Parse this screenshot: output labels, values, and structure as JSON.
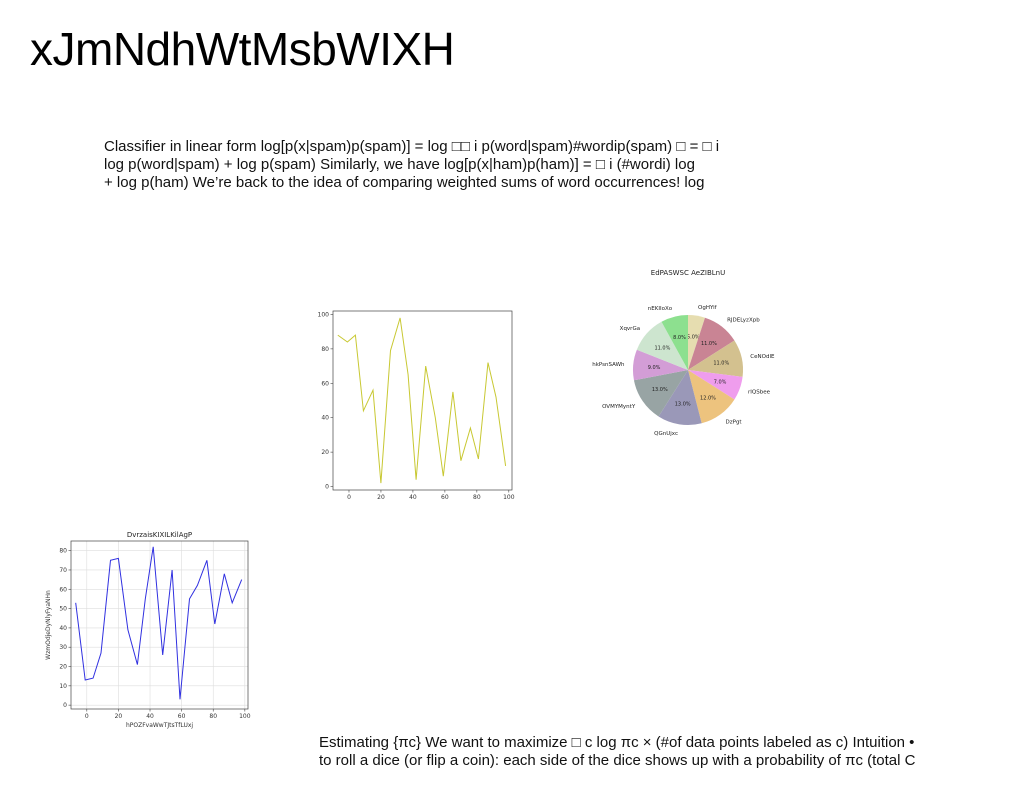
{
  "slide": {
    "title": "xJmNdhWtMsbWIXH",
    "paragraph1": [
      "Classifier in linear form log[p(x|spam)p(spam)] = log □□ i p(word|spam)#wordip(spam) □ = □ i",
      "log p(word|spam) + log p(spam) Similarly, we have log[p(x|ham)p(ham)] = □ i (#wordi) log",
      "+ log p(ham) We’re back to the idea of comparing weighted sums of word occurrences! log"
    ],
    "paragraph2": [
      "Estimating {πc} We want to maximize □ c log πc × (#of data points labeled as c) Intuition •",
      "to roll a dice (or flip a coin): each side of the dice shows up with a probability of πc (total C"
    ]
  },
  "chart_data": [
    {
      "type": "line",
      "title": "",
      "xlabel": "",
      "ylabel": "",
      "color": "#c8c832",
      "x": [
        -7,
        -1,
        4,
        9,
        15,
        20,
        26,
        32,
        37,
        42,
        48,
        54,
        59,
        65,
        70,
        76,
        81,
        87,
        92,
        98
      ],
      "y": [
        88,
        84,
        88,
        44,
        56,
        2,
        79,
        98,
        65,
        4,
        70,
        40,
        6,
        55,
        15,
        34,
        16,
        72,
        52,
        12
      ],
      "xlim": [
        -10,
        102
      ],
      "ylim": [
        -2,
        102
      ],
      "xticks": [
        0,
        20,
        40,
        60,
        80,
        100
      ],
      "yticks": [
        0,
        20,
        40,
        60,
        80,
        100
      ],
      "grid": false
    },
    {
      "type": "pie",
      "title": "EdPASWSC AeZIBLnU",
      "labels": [
        "OgHYif",
        "RJDELyzXpb",
        "CeNOdlE",
        "rIQSbee",
        "DzPgt",
        "QGnUjxc",
        "OVMYMyntY",
        "hkPsnSAWh",
        "XqvrGa",
        "nEKIIoXo"
      ],
      "values": [
        5.0,
        11.0,
        11.0,
        7.0,
        12.0,
        13.0,
        13.0,
        9.0,
        11.0,
        8.0
      ],
      "colors": [
        "#e6ddb0",
        "#c98494",
        "#d3c18f",
        "#ef9ded",
        "#edc37e",
        "#9a98b8",
        "#98a4a4",
        "#d39dd6",
        "#cde5cf",
        "#8de08f"
      ]
    },
    {
      "type": "line",
      "title": "DvrzaisKIXILKilAgP",
      "xlabel": "hPOZFvaWwTJtsTfLUxj",
      "ylabel": "WzmOdjeDyNlyFyaNHn",
      "color": "#3030e0",
      "x": [
        -7,
        -1,
        4,
        9,
        15,
        20,
        26,
        32,
        37,
        42,
        48,
        54,
        59,
        65,
        70,
        76,
        81,
        87,
        92,
        98
      ],
      "y": [
        53,
        13,
        14,
        27,
        75,
        76,
        39,
        21,
        55,
        82,
        26,
        70,
        3,
        55,
        62,
        75,
        42,
        68,
        53,
        65
      ],
      "xlim": [
        -10,
        102
      ],
      "ylim": [
        -2,
        85
      ],
      "xticks": [
        0,
        20,
        40,
        60,
        80,
        100
      ],
      "yticks": [
        0,
        10,
        20,
        30,
        40,
        50,
        60,
        70,
        80
      ],
      "grid": true
    }
  ]
}
